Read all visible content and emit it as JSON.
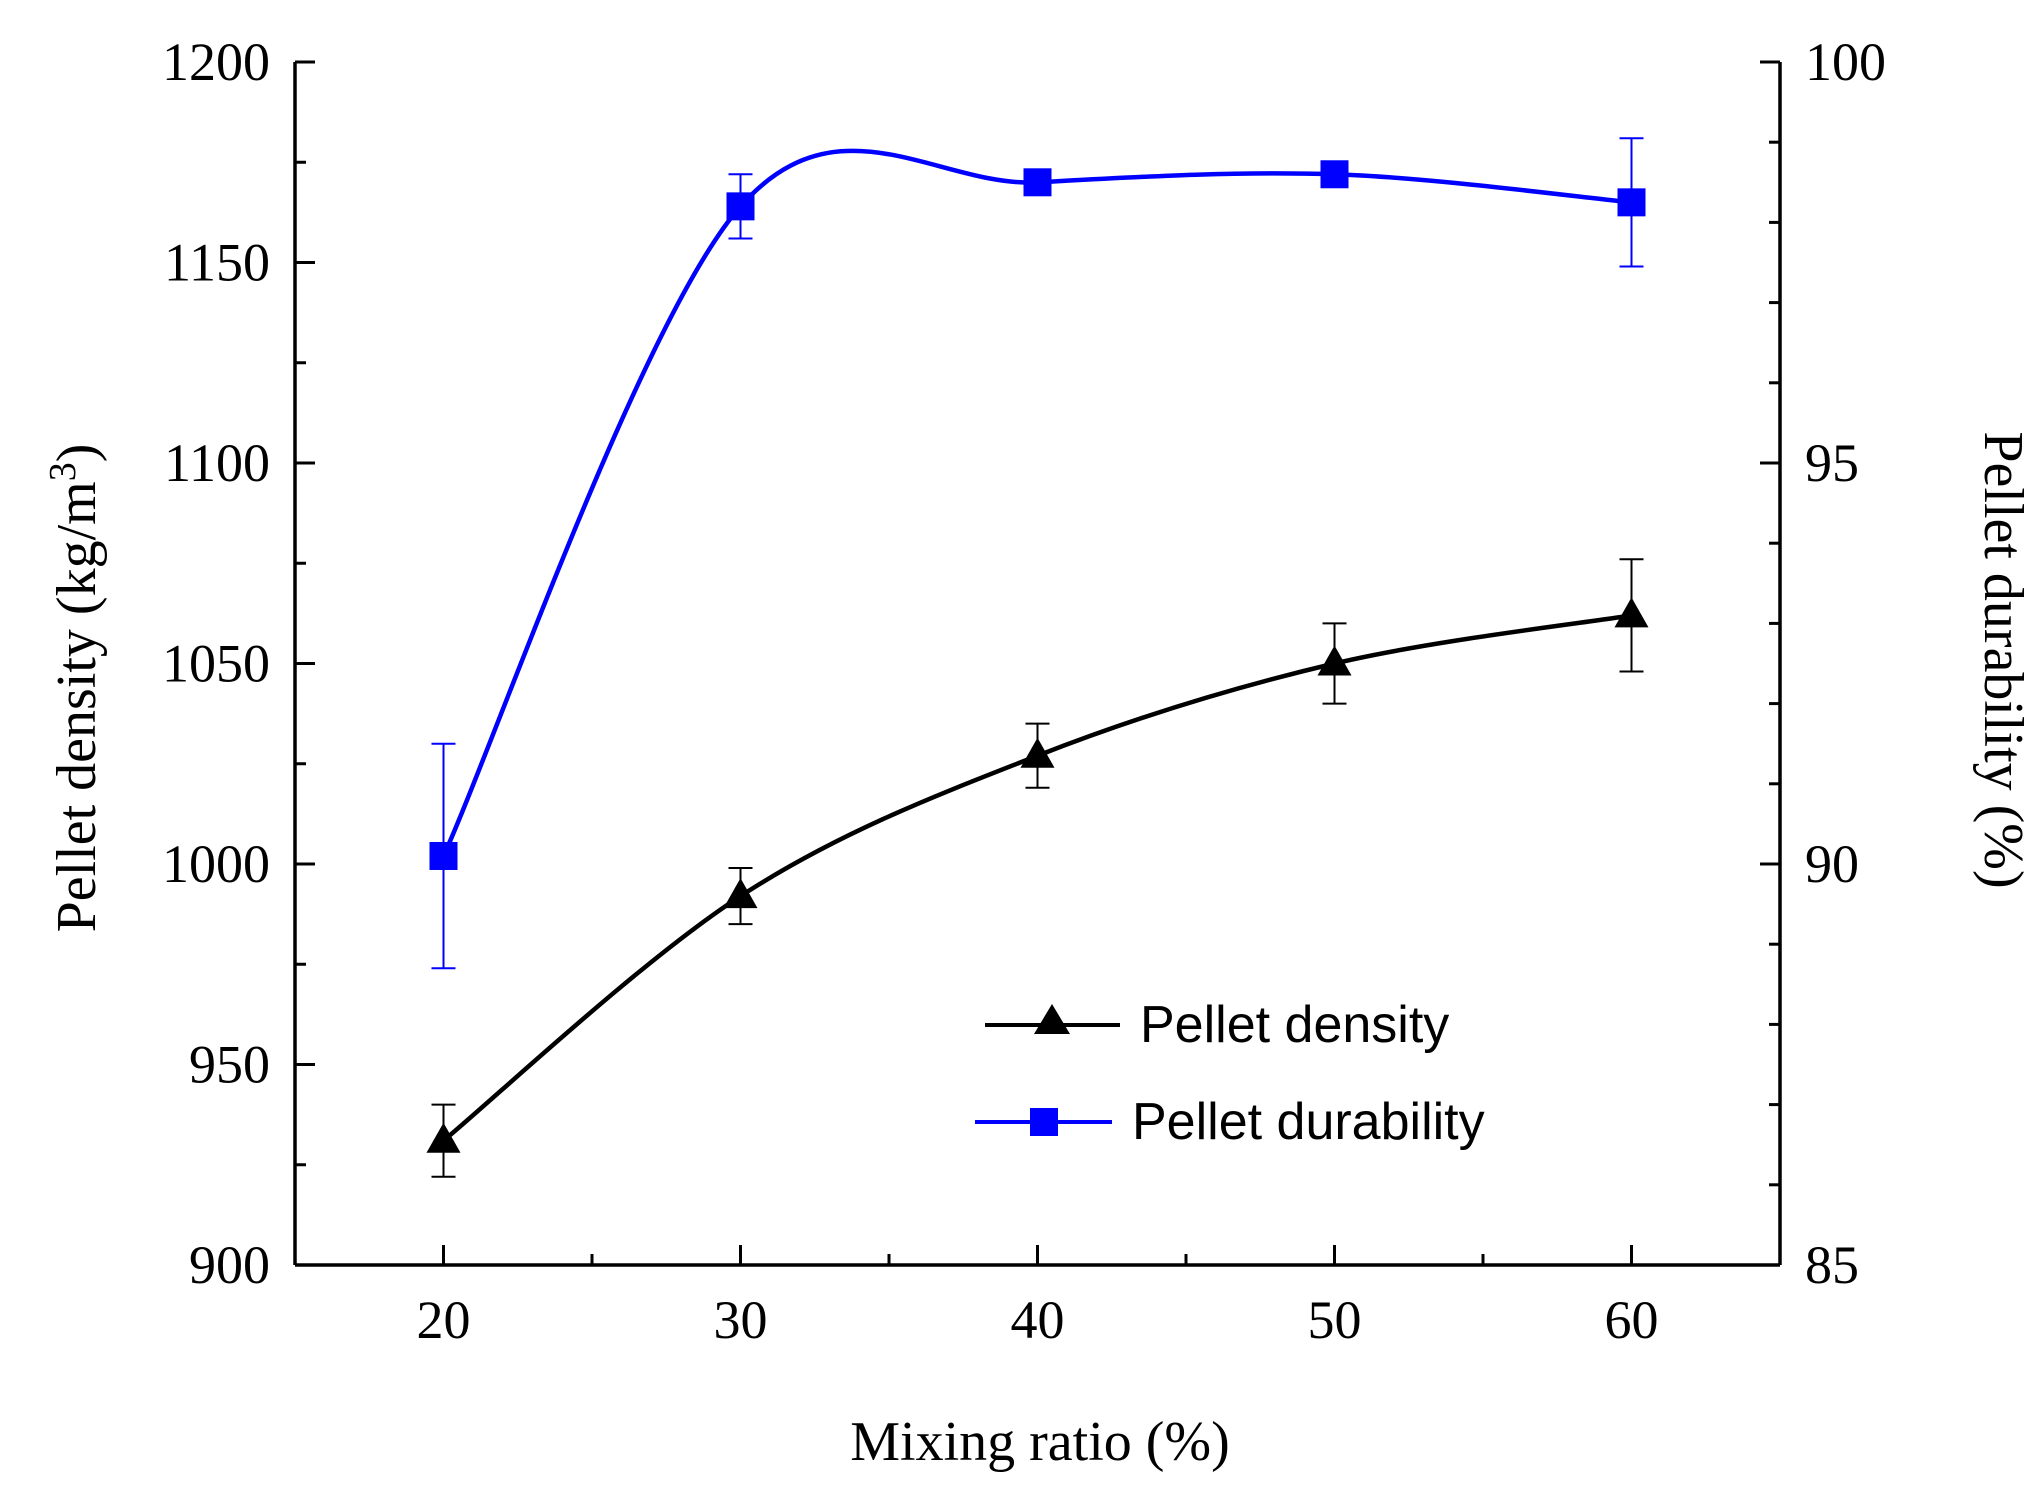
{
  "chart_data": {
    "type": "line",
    "xlabel": "Mixing ratio (%)",
    "ylabel_left_main": "Pellet density (kg/m",
    "ylabel_left_sup": "3",
    "ylabel_left_close": ")",
    "ylabel_right": "Pellet durability (%)",
    "xlim": [
      15,
      65
    ],
    "x_ticks": [
      20,
      30,
      40,
      50,
      60
    ],
    "x_minor_ticks": [
      25,
      35,
      45,
      55
    ],
    "ylim_left": [
      900,
      1200
    ],
    "y_left_ticks": [
      900,
      950,
      1000,
      1050,
      1100,
      1150,
      1200
    ],
    "y_left_minor_ticks": [
      925,
      975,
      1025,
      1075,
      1125,
      1175
    ],
    "ylim_right": [
      85,
      100
    ],
    "y_right_ticks": [
      85,
      90,
      95,
      100
    ],
    "y_right_minor_ticks": [
      86,
      87,
      88,
      89,
      91,
      92,
      93,
      94,
      96,
      97,
      98,
      99
    ],
    "legend_position": "lower-right",
    "series": [
      {
        "name": "Pellet density",
        "axis": "left",
        "marker": "triangle",
        "color": "#000000",
        "x": [
          20,
          30,
          40,
          50,
          60
        ],
        "y": [
          931,
          992,
          1027,
          1050,
          1062
        ],
        "error": [
          9,
          7,
          8,
          10,
          14
        ]
      },
      {
        "name": "Pellet durability",
        "axis": "right",
        "marker": "square",
        "color": "#0000FF",
        "x": [
          20,
          30,
          40,
          50,
          60
        ],
        "y": [
          90.1,
          98.2,
          98.5,
          98.6,
          98.25
        ],
        "error": [
          1.4,
          0.4,
          0.0,
          0.0,
          0.8
        ]
      }
    ]
  }
}
